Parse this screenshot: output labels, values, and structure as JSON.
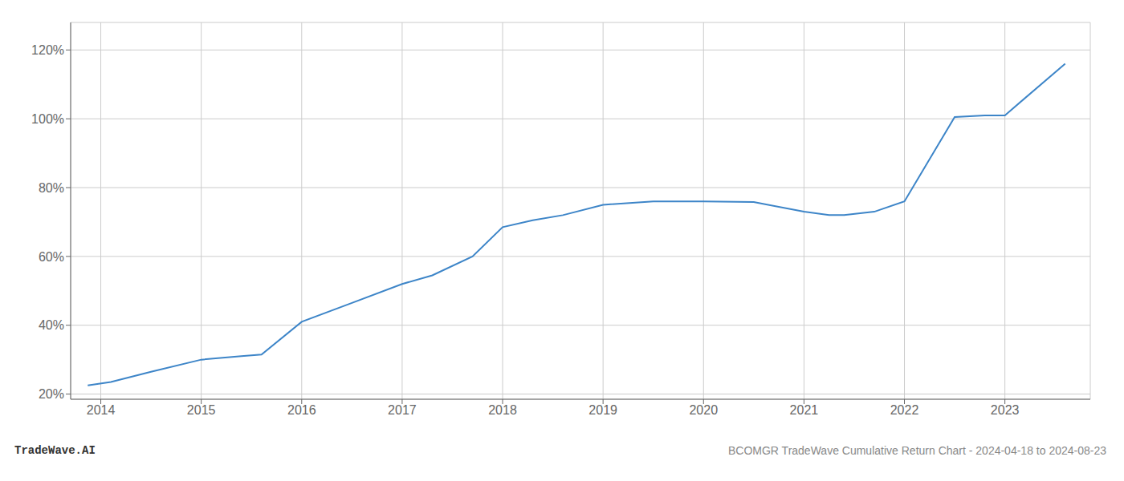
{
  "chart_data": {
    "type": "line",
    "x": [
      2013.87,
      2014.1,
      2014.5,
      2015.0,
      2015.4,
      2015.6,
      2016.0,
      2016.5,
      2017.0,
      2017.3,
      2017.7,
      2018.0,
      2018.3,
      2018.6,
      2019.0,
      2019.5,
      2020.0,
      2020.5,
      2021.0,
      2021.25,
      2021.4,
      2021.7,
      2022.0,
      2022.5,
      2022.8,
      2023.0,
      2023.6
    ],
    "values": [
      0.225,
      0.235,
      0.265,
      0.3,
      0.31,
      0.315,
      0.41,
      0.465,
      0.52,
      0.545,
      0.6,
      0.685,
      0.705,
      0.72,
      0.75,
      0.76,
      0.76,
      0.758,
      0.73,
      0.72,
      0.72,
      0.73,
      0.76,
      1.005,
      1.01,
      1.01,
      1.16
    ],
    "color": "#3d85c8",
    "xlim": [
      2013.7,
      2023.85
    ],
    "xticks": [
      2014,
      2015,
      2016,
      2017,
      2018,
      2019,
      2020,
      2021,
      2022,
      2023
    ],
    "ylim": [
      0.185,
      1.28
    ],
    "yticks": [
      {
        "value": 0.2,
        "label": "20%"
      },
      {
        "value": 0.4,
        "label": "40%"
      },
      {
        "value": 0.6,
        "label": "60%"
      },
      {
        "value": 0.8,
        "label": "80%"
      },
      {
        "value": 1.0,
        "label": "100%"
      },
      {
        "value": 1.2,
        "label": "120%"
      }
    ],
    "grid": true,
    "annotations": [
      "TradeWave.AI",
      "BCOMGR TradeWave Cumulative Return Chart - 2024-04-18 to 2024-08-23"
    ]
  }
}
